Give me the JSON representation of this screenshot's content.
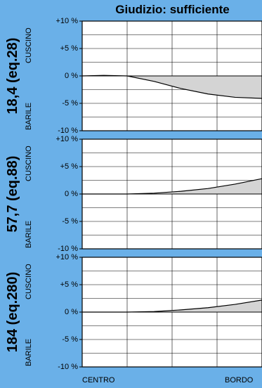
{
  "header": {
    "title": "Giudizio: sufficiente"
  },
  "colors": {
    "background": "#6ab0e8",
    "plot_background": "#ffffff",
    "grid": "#000000",
    "fill": "#d4d4d4",
    "curve": "#000000"
  },
  "chart_data": [
    {
      "type": "area",
      "panel_label": "18,4 (eq.28)",
      "upper_side_label": "CUSCINO",
      "lower_side_label": "BARILE",
      "y_tick_labels": [
        "+10 %",
        "+5 %",
        "0 %",
        "-5 %",
        "-10 %"
      ],
      "ylim": [
        -10,
        10
      ],
      "xlim": [
        0,
        1
      ],
      "x_labels": [
        "CENTRO",
        "BORDO"
      ],
      "grid": true,
      "series": [
        {
          "x": [
            0,
            0.12,
            0.25,
            0.4,
            0.55,
            0.7,
            0.85,
            1.0
          ],
          "y": [
            0,
            0.1,
            0,
            -1.0,
            -2.3,
            -3.3,
            -3.9,
            -4.1
          ]
        }
      ]
    },
    {
      "type": "area",
      "panel_label": "57,7 (eq.88)",
      "upper_side_label": "CUSCINO",
      "lower_side_label": "BARILE",
      "y_tick_labels": [
        "+10 %",
        "+5 %",
        "0 %",
        "-5 %",
        "-10 %"
      ],
      "ylim": [
        -10,
        10
      ],
      "xlim": [
        0,
        1
      ],
      "x_labels": [
        "CENTRO",
        "BORDO"
      ],
      "grid": true,
      "series": [
        {
          "x": [
            0,
            0.25,
            0.4,
            0.55,
            0.7,
            0.85,
            1.0
          ],
          "y": [
            0,
            0,
            0.15,
            0.5,
            1.0,
            1.8,
            2.8
          ]
        }
      ]
    },
    {
      "type": "area",
      "panel_label": "184 (eq.280)",
      "upper_side_label": "CUSCINO",
      "lower_side_label": "BARILE",
      "y_tick_labels": [
        "+10 %",
        "+5 %",
        "0 %",
        "-5 %",
        "-10 %"
      ],
      "ylim": [
        -10,
        10
      ],
      "xlim": [
        0,
        1
      ],
      "x_labels": [
        "CENTRO",
        "BORDO"
      ],
      "grid": true,
      "series": [
        {
          "x": [
            0,
            0.25,
            0.4,
            0.55,
            0.7,
            0.85,
            1.0
          ],
          "y": [
            0,
            0,
            0.1,
            0.4,
            0.8,
            1.4,
            2.2
          ]
        }
      ]
    }
  ]
}
